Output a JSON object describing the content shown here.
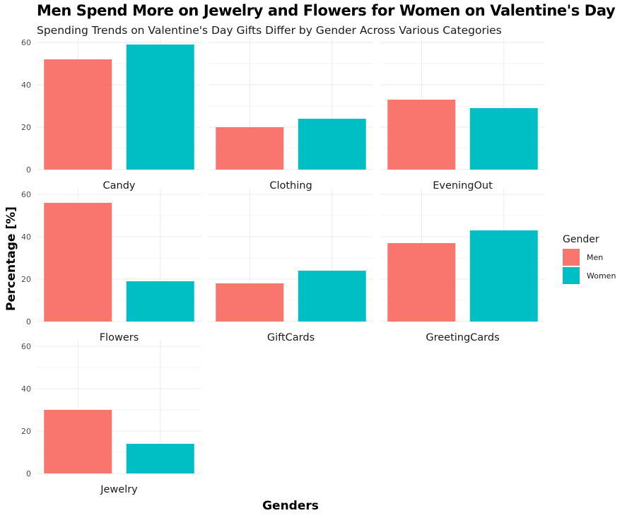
{
  "title": "Men Spend More on Jewelry and Flowers for Women on Valentine's Day",
  "subtitle": "Spending Trends on Valentine's Day Gifts Differ by Gender Across Various Categories",
  "colors": {
    "Men": "#F8766D",
    "Women": "#00BFC4",
    "grid": "#ebebeb"
  },
  "chart_data": {
    "type": "bar",
    "xlabel": "Genders",
    "ylabel": "Percentage [%]",
    "ylim": [
      0,
      60
    ],
    "yticks": [
      0,
      20,
      40,
      60
    ],
    "grid": true,
    "legend": {
      "title": "Gender",
      "position": "right",
      "entries": [
        "Men",
        "Women"
      ]
    },
    "categories": [
      "Men",
      "Women"
    ],
    "facets": [
      {
        "name": "Candy",
        "values": {
          "Men": 52,
          "Women": 59
        }
      },
      {
        "name": "Clothing",
        "values": {
          "Men": 20,
          "Women": 24
        }
      },
      {
        "name": "EveningOut",
        "values": {
          "Men": 33,
          "Women": 29
        }
      },
      {
        "name": "Flowers",
        "values": {
          "Men": 56,
          "Women": 19
        }
      },
      {
        "name": "GiftCards",
        "values": {
          "Men": 18,
          "Women": 24
        }
      },
      {
        "name": "GreetingCards",
        "values": {
          "Men": 37,
          "Women": 43
        }
      },
      {
        "name": "Jewelry",
        "values": {
          "Men": 30,
          "Women": 14
        }
      }
    ]
  }
}
